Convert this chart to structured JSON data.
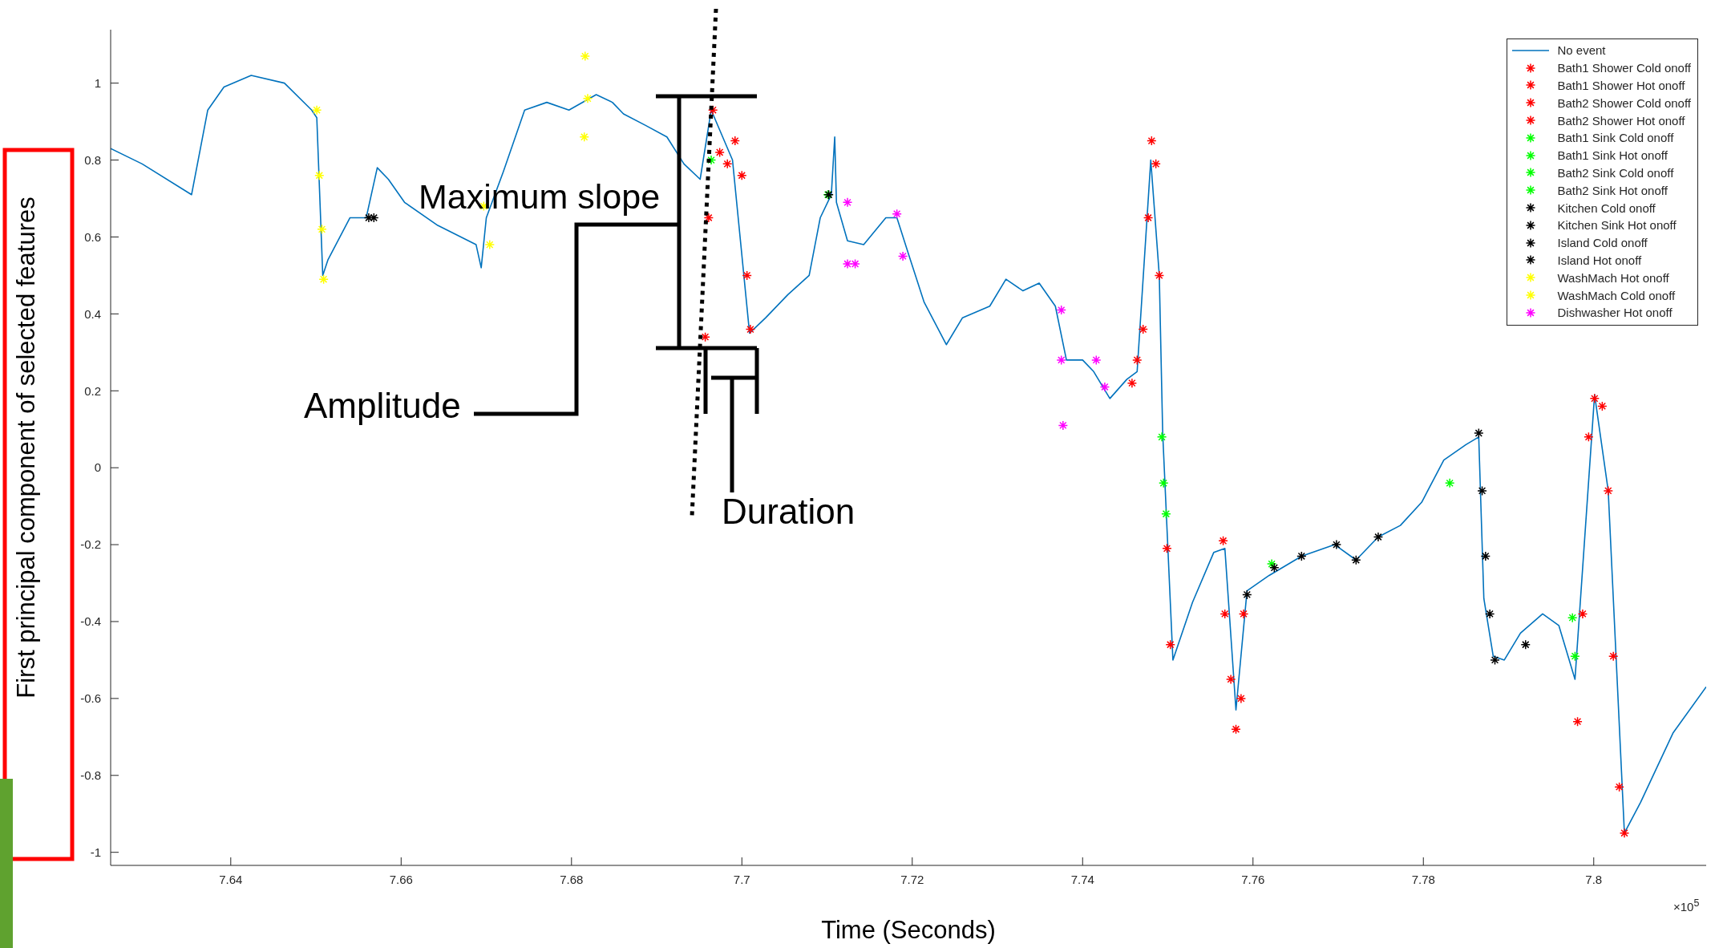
{
  "chart_data": {
    "type": "line",
    "xlabel": "Time (Seconds)",
    "ylabel": "First principal component of selected features",
    "annotations": [
      "Maximum slope",
      "Amplitude",
      "Duration",
      "×10$^{5}$"
    ],
    "xlim": [
      7.6259,
      7.8132
    ],
    "xticks": [
      7.64,
      7.66,
      7.68,
      7.7,
      7.72,
      7.74,
      7.76,
      7.78,
      7.8
    ],
    "ylim": [
      -1.034,
      1.139
    ],
    "yticks": [
      -1,
      -0.8,
      -0.6,
      -0.4,
      -0.2,
      0,
      0.2,
      0.4,
      0.6,
      0.8,
      1
    ],
    "legend": "top right",
    "series": [
      {
        "name": "No event",
        "color": "#0072bd",
        "line_style": "solid",
        "x": [
          7.6259,
          7.6296,
          7.6354,
          7.6373,
          7.6392,
          7.6424,
          7.6463,
          7.6495,
          7.6501,
          7.6508,
          7.6514,
          7.654,
          7.6559,
          7.6572,
          7.6585,
          7.6604,
          7.6643,
          7.6688,
          7.6694,
          7.67,
          7.672,
          7.6745,
          7.6771,
          7.6797,
          7.6829,
          7.6848,
          7.6861,
          7.6887,
          7.6912,
          7.6932,
          7.6951,
          7.6964,
          7.6989,
          7.7009,
          7.7028,
          7.7054,
          7.7079,
          7.7092,
          7.7105,
          7.7109,
          7.7111,
          7.7124,
          7.7143,
          7.7169,
          7.7182,
          7.7195,
          7.7214,
          7.724,
          7.7259,
          7.7291,
          7.731,
          7.733,
          7.7349,
          7.7368,
          7.7381,
          7.74,
          7.7413,
          7.7432,
          7.7452,
          7.7464,
          7.748,
          7.749,
          7.7494,
          7.7506,
          7.7529,
          7.7554,
          7.7567,
          7.758,
          7.7593,
          7.7619,
          7.7657,
          7.7696,
          7.7721,
          7.7747,
          7.7773,
          7.7798,
          7.7824,
          7.785,
          7.7865,
          7.7871,
          7.7882,
          7.7895,
          7.7914,
          7.794,
          7.7959,
          7.7978,
          7.8001,
          7.8017,
          7.8036,
          7.8055,
          7.8093,
          7.8132
        ],
        "values": [
          0.83,
          0.79,
          0.71,
          0.93,
          0.99,
          1.02,
          1.0,
          0.93,
          0.91,
          0.5,
          0.54,
          0.65,
          0.65,
          0.78,
          0.75,
          0.69,
          0.63,
          0.58,
          0.52,
          0.65,
          0.77,
          0.93,
          0.95,
          0.93,
          0.97,
          0.95,
          0.92,
          0.89,
          0.86,
          0.79,
          0.75,
          0.93,
          0.8,
          0.35,
          0.39,
          0.45,
          0.5,
          0.65,
          0.71,
          0.86,
          0.69,
          0.59,
          0.58,
          0.65,
          0.65,
          0.56,
          0.43,
          0.32,
          0.39,
          0.42,
          0.49,
          0.46,
          0.48,
          0.42,
          0.28,
          0.28,
          0.25,
          0.18,
          0.23,
          0.25,
          0.8,
          0.5,
          0.09,
          -0.5,
          -0.35,
          -0.22,
          -0.21,
          -0.63,
          -0.32,
          -0.28,
          -0.23,
          -0.2,
          -0.24,
          -0.18,
          -0.15,
          -0.09,
          0.02,
          0.06,
          0.08,
          -0.34,
          -0.49,
          -0.5,
          -0.43,
          -0.38,
          -0.41,
          -0.55,
          0.19,
          -0.06,
          -0.95,
          -0.87,
          -0.69,
          -0.57
        ]
      },
      {
        "name": "Bath1 Shower Cold onoff",
        "type": "scatter",
        "color": "#ff0000",
        "marker": "cross",
        "x": [
          7.6957,
          7.6961,
          7.6966,
          7.6974,
          7.6983,
          7.6992,
          7.7,
          7.7006,
          7.701
        ],
        "values": [
          0.34,
          0.65,
          0.93,
          0.82,
          0.79,
          0.85,
          0.76,
          0.5,
          0.36
        ]
      },
      {
        "name": "Bath1 Shower Hot onoff",
        "type": "scatter",
        "color": "#ff0000",
        "marker": "cross",
        "x": [
          7.7458,
          7.7464,
          7.7471,
          7.7477,
          7.7481,
          7.7486,
          7.749,
          7.7499,
          7.7503
        ],
        "values": [
          0.22,
          0.28,
          0.36,
          0.65,
          0.85,
          0.79,
          0.5,
          -0.21,
          -0.46
        ]
      },
      {
        "name": "Bath2 Shower Cold onoff",
        "type": "scatter",
        "color": "#ff0000",
        "marker": "cross",
        "x": [
          7.7565,
          7.7567,
          7.7574,
          7.758,
          7.7586,
          7.7589
        ],
        "values": [
          -0.19,
          -0.38,
          -0.55,
          -0.68,
          -0.6,
          -0.38
        ]
      },
      {
        "name": "Bath2 Shower Hot onoff",
        "type": "scatter",
        "color": "#ff0000",
        "marker": "cross",
        "x": [
          7.7981,
          7.7987,
          7.7994,
          7.8001,
          7.801,
          7.8017,
          7.8023,
          7.803,
          7.8036
        ],
        "values": [
          -0.66,
          -0.38,
          0.08,
          0.18,
          0.16,
          -0.06,
          -0.49,
          -0.83,
          -0.95
        ]
      },
      {
        "name": "Bath1 Sink Cold onoff",
        "type": "scatter",
        "color": "#00ff00",
        "marker": "cross",
        "x": [
          7.6964,
          7.7101
        ],
        "values": [
          0.8,
          0.71
        ]
      },
      {
        "name": "Bath1 Sink Hot onoff",
        "type": "scatter",
        "color": "#00ff00",
        "marker": "cross",
        "x": [
          7.7493,
          7.7495,
          7.7498
        ],
        "values": [
          0.08,
          -0.04,
          -0.12
        ]
      },
      {
        "name": "Bath2 Sink Cold onoff",
        "type": "scatter",
        "color": "#00ff00",
        "marker": "cross",
        "x": [
          7.7622,
          7.7831
        ],
        "values": [
          -0.25,
          -0.04
        ]
      },
      {
        "name": "Bath2 Sink Hot onoff",
        "type": "scatter",
        "color": "#00ff00",
        "marker": "cross",
        "x": [
          7.7975,
          7.7978
        ],
        "values": [
          -0.39,
          -0.49
        ]
      },
      {
        "name": "Kitchen Cold onoff",
        "type": "scatter",
        "color": "#000000",
        "marker": "cross",
        "x": [
          7.6562,
          7.6568
        ],
        "values": [
          0.65,
          0.65
        ]
      },
      {
        "name": "Kitchen Sink Hot onoff",
        "type": "scatter",
        "color": "#000000",
        "marker": "cross",
        "x": [
          7.7102,
          7.7593,
          7.7625
        ],
        "values": [
          0.71,
          -0.33,
          -0.26
        ]
      },
      {
        "name": "Island Cold onoff",
        "type": "scatter",
        "color": "#000000",
        "marker": "cross",
        "x": [
          7.7657,
          7.7698,
          7.7721,
          7.7747
        ],
        "values": [
          -0.23,
          -0.2,
          -0.24,
          -0.18
        ]
      },
      {
        "name": "Island Hot onoff",
        "type": "scatter",
        "color": "#000000",
        "marker": "cross",
        "x": [
          7.7865,
          7.7869,
          7.7873,
          7.7878,
          7.7884,
          7.792
        ],
        "values": [
          0.09,
          -0.06,
          -0.23,
          -0.38,
          -0.5,
          -0.46
        ]
      },
      {
        "name": "WashMach Hot onoff",
        "type": "scatter",
        "color": "#ffff00",
        "marker": "cross",
        "x": [
          7.6501,
          7.6504,
          7.6507,
          7.6509,
          7.6816,
          7.6819,
          7.6815
        ],
        "values": [
          0.93,
          0.76,
          0.62,
          0.49,
          1.07,
          0.96,
          0.86
        ]
      },
      {
        "name": "WashMach Cold onoff",
        "type": "scatter",
        "color": "#ffff00",
        "marker": "cross",
        "x": [
          7.6697,
          7.6704
        ],
        "values": [
          0.68,
          0.58
        ]
      },
      {
        "name": "Dishwasher Hot onoff",
        "type": "scatter",
        "color": "#ff00ff",
        "marker": "cross",
        "x": [
          7.7124,
          7.7124,
          7.7133,
          7.7182,
          7.7189,
          7.7375,
          7.7375,
          7.7377,
          7.7416,
          7.7426
        ],
        "values": [
          0.69,
          0.53,
          0.53,
          0.66,
          0.55,
          0.41,
          0.28,
          0.11,
          0.28,
          0.21
        ]
      }
    ]
  }
}
